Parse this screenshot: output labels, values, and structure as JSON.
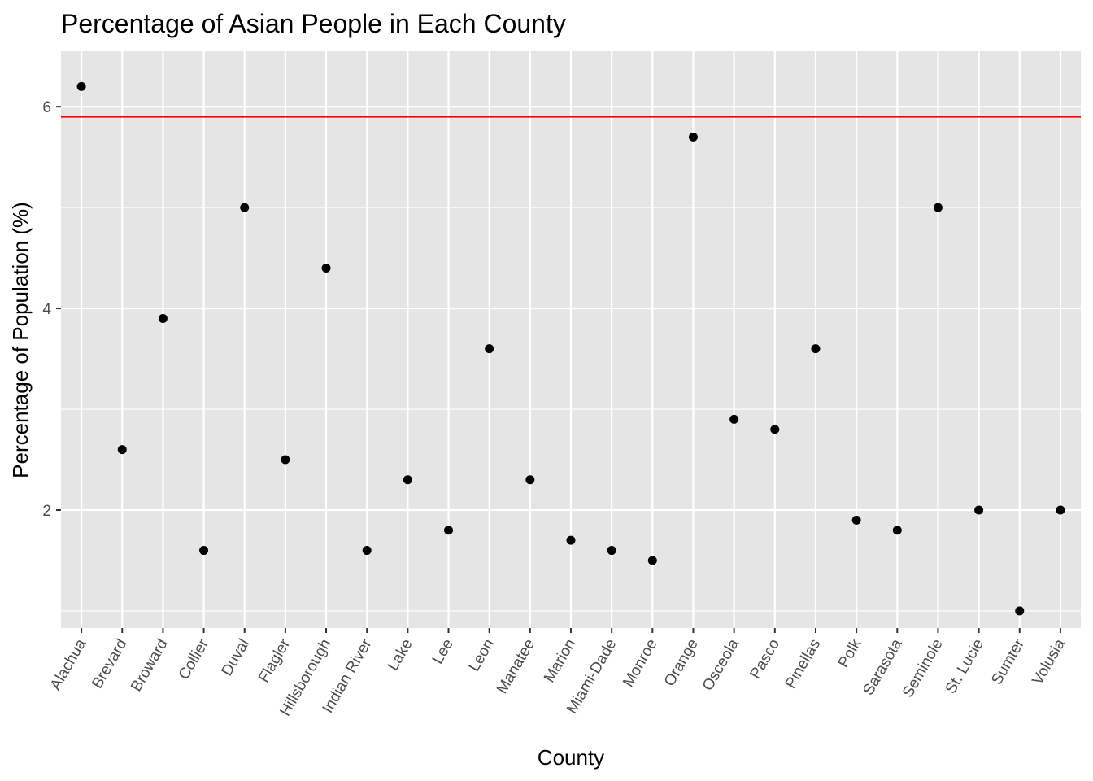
{
  "chart_data": {
    "type": "scatter",
    "title": "Percentage of Asian People in Each County",
    "xlabel": "County",
    "ylabel": "Percentage of Population (%)",
    "categories": [
      "Alachua",
      "Brevard",
      "Broward",
      "Collier",
      "Duval",
      "Flagler",
      "Hillsborough",
      "Indian River",
      "Lake",
      "Lee",
      "Leon",
      "Manatee",
      "Marion",
      "Miami-Dade",
      "Monroe",
      "Orange",
      "Osceola",
      "Pasco",
      "Pinellas",
      "Polk",
      "Sarasota",
      "Seminole",
      "St. Lucie",
      "Sumter",
      "Volusia"
    ],
    "values": [
      6.2,
      2.6,
      3.9,
      1.6,
      5.0,
      2.5,
      4.4,
      1.6,
      2.3,
      1.8,
      3.6,
      2.3,
      1.7,
      1.6,
      1.5,
      5.7,
      2.9,
      2.8,
      3.6,
      1.9,
      1.8,
      5.0,
      2.0,
      1.0,
      2.0
    ],
    "y_ticks": [
      "2",
      "4",
      "6"
    ],
    "ylim": [
      0.83,
      6.55
    ],
    "reference_line": {
      "y": 5.9,
      "color": "#ff0000"
    },
    "grid": true,
    "panel_color": "#e5e5e5",
    "point_color": "#000000"
  }
}
